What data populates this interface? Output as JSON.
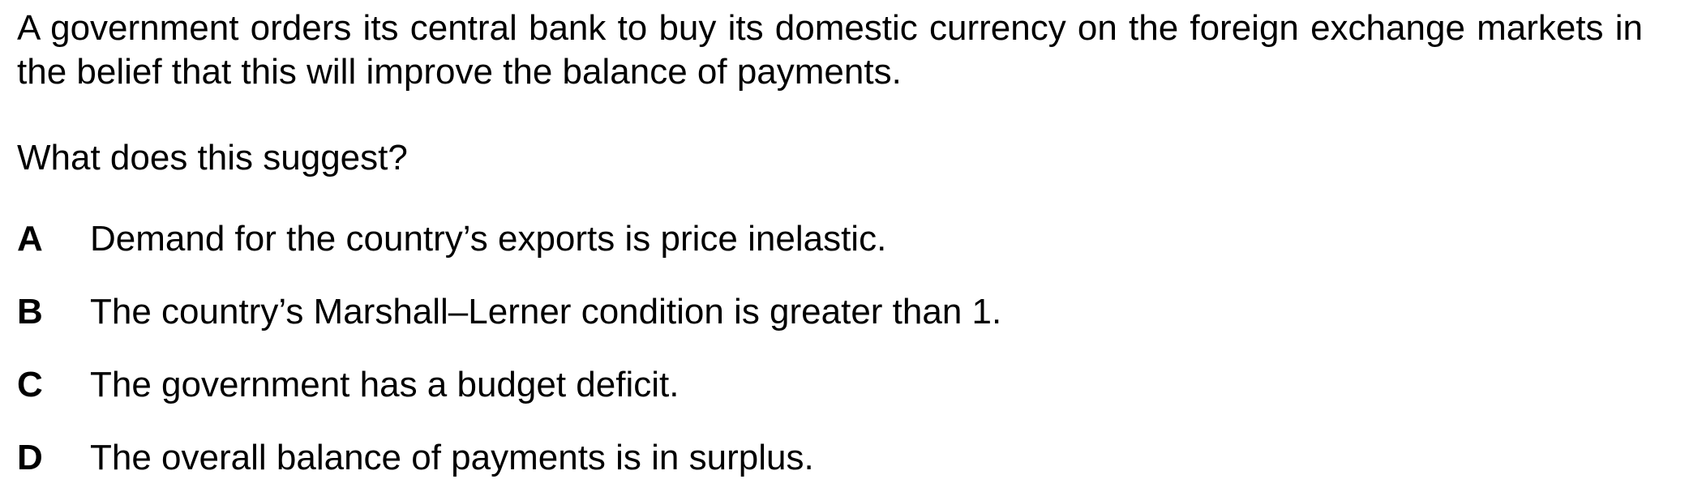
{
  "question": {
    "stem": "A government orders its central bank to buy its domestic currency on the foreign exchange markets in the belief that this will improve the balance of payments.",
    "prompt": "What does this suggest?",
    "options": [
      {
        "letter": "A",
        "text": "Demand for the country’s exports is price inelastic."
      },
      {
        "letter": "B",
        "text": "The country’s Marshall–Lerner condition is greater than 1."
      },
      {
        "letter": "C",
        "text": "The government has a budget deficit."
      },
      {
        "letter": "D",
        "text": "The overall balance of payments is in surplus."
      }
    ]
  }
}
